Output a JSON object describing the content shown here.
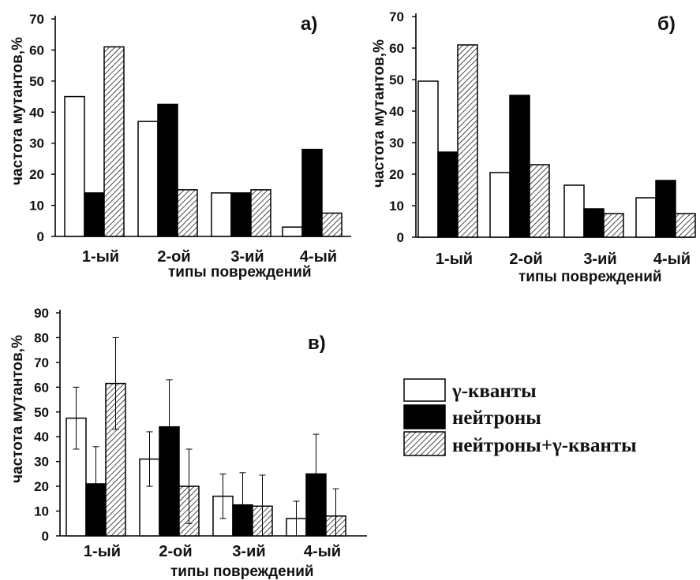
{
  "legend": {
    "gamma": "γ-кванты",
    "neutrons": "нейтроны",
    "combined": "нейтроны+γ-кванты"
  },
  "colors": {
    "gamma_fill": "#ffffff",
    "neutrons_fill": "#000000",
    "combined_fill": "hatched",
    "stroke": "#000000"
  },
  "chart_data": [
    {
      "type": "bar",
      "panel_label": "а)",
      "ylabel": "частота мутантов,%",
      "xlabel": "типы повреждений",
      "categories": [
        "1-ый",
        "2-ой",
        "3-ий",
        "4-ый"
      ],
      "yticks": [
        "0",
        "10",
        "20",
        "30",
        "40",
        "50",
        "60",
        "70"
      ],
      "ylim": [
        0,
        70
      ],
      "series": [
        {
          "name": "γ-кванты",
          "values": [
            45,
            37,
            14,
            3
          ]
        },
        {
          "name": "нейтроны",
          "values": [
            14,
            42.5,
            14,
            28
          ]
        },
        {
          "name": "нейтроны+γ-кванты",
          "values": [
            61,
            15,
            15,
            7.5
          ]
        }
      ]
    },
    {
      "type": "bar",
      "panel_label": "б)",
      "ylabel": "частота мутантов,%",
      "xlabel": "типы повреждений",
      "categories": [
        "1-ый",
        "2-ой",
        "3-ий",
        "4-ый"
      ],
      "yticks": [
        "0",
        "10",
        "20",
        "30",
        "40",
        "50",
        "60",
        "70"
      ],
      "ylim": [
        0,
        70
      ],
      "series": [
        {
          "name": "γ-кванты",
          "values": [
            49.5,
            20.5,
            16.5,
            12.5
          ]
        },
        {
          "name": "нейтроны",
          "values": [
            27,
            45,
            9,
            18
          ]
        },
        {
          "name": "нейтроны+γ-кванты",
          "values": [
            61,
            23,
            7.5,
            7.5
          ]
        }
      ]
    },
    {
      "type": "bar",
      "panel_label": "в)",
      "ylabel": "частота мутантов,%",
      "xlabel": "типы повреждений",
      "categories": [
        "1-ый",
        "2-ой",
        "3-ий",
        "4-ый"
      ],
      "yticks": [
        "0",
        "10",
        "20",
        "30",
        "40",
        "50",
        "60",
        "70",
        "80",
        "90"
      ],
      "ylim": [
        0,
        90
      ],
      "error_bars": true,
      "series": [
        {
          "name": "γ-кванты",
          "values": [
            47.5,
            31,
            16,
            7
          ],
          "errors": [
            12.5,
            11,
            9,
            7
          ]
        },
        {
          "name": "нейтроны",
          "values": [
            21,
            44,
            12.5,
            25
          ],
          "errors": [
            15,
            19,
            13,
            16
          ]
        },
        {
          "name": "нейтроны+γ-кванты",
          "values": [
            61.5,
            20,
            12,
            8
          ],
          "errors": [
            18.5,
            15,
            12.5,
            11
          ]
        }
      ]
    }
  ]
}
